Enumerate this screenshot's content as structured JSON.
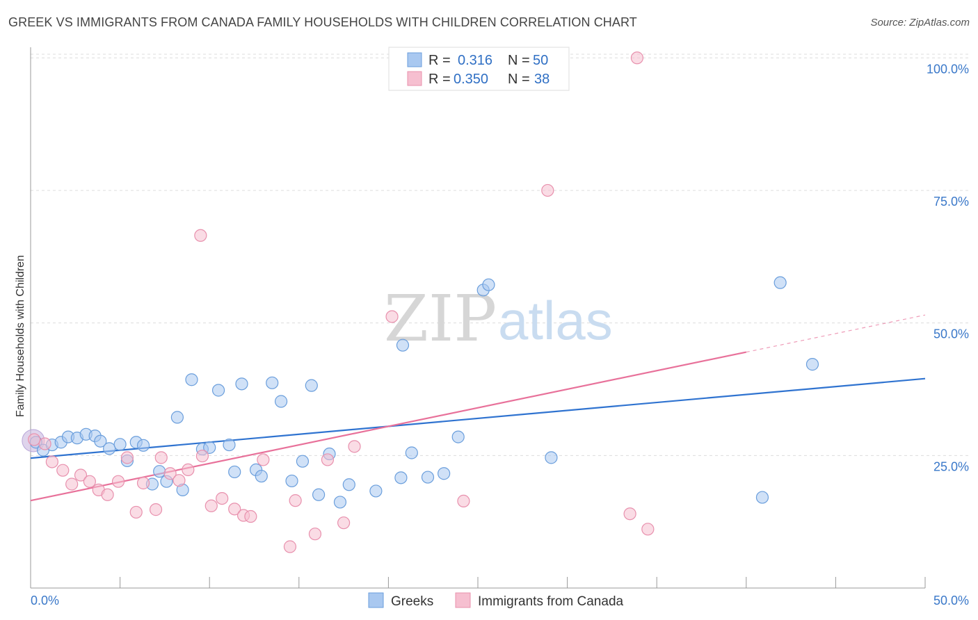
{
  "title": "GREEK VS IMMIGRANTS FROM CANADA FAMILY HOUSEHOLDS WITH CHILDREN CORRELATION CHART",
  "source": "Source: ZipAtlas.com",
  "watermark": {
    "zip": "ZIP",
    "atlas": "atlas"
  },
  "legend": {
    "r_label": "R =",
    "n_label": "N =",
    "rows": [
      {
        "r": "0.316",
        "n": "50",
        "color": "#a9c8f0",
        "stroke": "#6a9edc"
      },
      {
        "r": "0.350",
        "n": "38",
        "color": "#f6bfd0",
        "stroke": "#e890ad"
      }
    ]
  },
  "bottom_legend": [
    "Greeks",
    "Immigrants from Canada"
  ],
  "chart_data": {
    "type": "scatter",
    "title": "GREEK VS IMMIGRANTS FROM CANADA FAMILY HOUSEHOLDS WITH CHILDREN CORRELATION CHART",
    "xlabel": "",
    "ylabel": "Family Households with Children",
    "xlim": [
      0,
      50
    ],
    "ylim": [
      0,
      102
    ],
    "x_tick_labels": [
      "0.0%",
      "50.0%"
    ],
    "y_ticks": [
      {
        "value": 25,
        "label": "25.0%"
      },
      {
        "value": 50,
        "label": "50.0%"
      },
      {
        "value": 75,
        "label": "75.0%"
      },
      {
        "value": 100,
        "label": "100.0%"
      }
    ],
    "grid": true,
    "series": [
      {
        "name": "Greeks",
        "color": "#a9c8f0",
        "stroke": "#6a9edc",
        "trend": {
          "x0": 0,
          "y0": 24.5,
          "x1": 50,
          "y1": 39.5,
          "color": "#2f73d0"
        },
        "points": [
          [
            0.3,
            27.5
          ],
          [
            0.7,
            26.0
          ],
          [
            1.2,
            27.0
          ],
          [
            1.7,
            27.5
          ],
          [
            2.1,
            28.5
          ],
          [
            2.6,
            28.3
          ],
          [
            3.1,
            29.0
          ],
          [
            3.6,
            28.7
          ],
          [
            3.9,
            27.7
          ],
          [
            4.4,
            26.3
          ],
          [
            5.0,
            27.1
          ],
          [
            5.4,
            24.0
          ],
          [
            5.9,
            27.5
          ],
          [
            6.3,
            26.9
          ],
          [
            6.8,
            19.6
          ],
          [
            7.2,
            22.0
          ],
          [
            7.6,
            20.1
          ],
          [
            8.2,
            32.2
          ],
          [
            8.5,
            18.5
          ],
          [
            9.0,
            39.3
          ],
          [
            9.6,
            26.2
          ],
          [
            10.0,
            26.5
          ],
          [
            10.5,
            37.3
          ],
          [
            11.1,
            27.0
          ],
          [
            11.4,
            21.9
          ],
          [
            11.8,
            38.5
          ],
          [
            12.6,
            22.3
          ],
          [
            12.9,
            21.1
          ],
          [
            13.5,
            38.7
          ],
          [
            14.0,
            35.2
          ],
          [
            14.6,
            20.2
          ],
          [
            15.2,
            23.9
          ],
          [
            15.7,
            38.2
          ],
          [
            16.1,
            17.6
          ],
          [
            16.7,
            25.3
          ],
          [
            17.3,
            16.2
          ],
          [
            17.8,
            19.5
          ],
          [
            19.3,
            18.3
          ],
          [
            20.7,
            20.8
          ],
          [
            20.8,
            45.8
          ],
          [
            21.3,
            25.5
          ],
          [
            22.2,
            20.9
          ],
          [
            23.1,
            21.6
          ],
          [
            23.9,
            28.5
          ],
          [
            25.3,
            56.2
          ],
          [
            25.6,
            57.2
          ],
          [
            29.1,
            24.6
          ],
          [
            40.9,
            17.1
          ],
          [
            41.9,
            57.6
          ],
          [
            43.7,
            42.2
          ]
        ]
      },
      {
        "name": "Immigrants from Canada",
        "color": "#f6bfd0",
        "stroke": "#e890ad",
        "trend": {
          "x0": 0,
          "y0": 16.5,
          "x1": 40,
          "y1": 44.5,
          "x2": 50,
          "y2": 51.5,
          "color": "#e8719a"
        },
        "points": [
          [
            0.8,
            27.2
          ],
          [
            1.2,
            23.8
          ],
          [
            1.8,
            22.2
          ],
          [
            2.3,
            19.6
          ],
          [
            2.8,
            21.3
          ],
          [
            3.3,
            20.1
          ],
          [
            3.8,
            18.5
          ],
          [
            4.3,
            17.6
          ],
          [
            4.9,
            20.1
          ],
          [
            5.4,
            24.6
          ],
          [
            5.9,
            14.3
          ],
          [
            6.3,
            19.8
          ],
          [
            7.0,
            14.8
          ],
          [
            7.3,
            24.6
          ],
          [
            7.8,
            21.6
          ],
          [
            8.3,
            20.3
          ],
          [
            8.8,
            22.3
          ],
          [
            9.5,
            66.5
          ],
          [
            9.6,
            24.9
          ],
          [
            10.1,
            15.5
          ],
          [
            10.7,
            16.9
          ],
          [
            11.4,
            14.9
          ],
          [
            11.9,
            13.7
          ],
          [
            12.3,
            13.5
          ],
          [
            13.0,
            24.2
          ],
          [
            14.5,
            7.8
          ],
          [
            14.8,
            16.5
          ],
          [
            15.9,
            10.2
          ],
          [
            16.6,
            24.2
          ],
          [
            17.5,
            12.3
          ],
          [
            18.1,
            26.7
          ],
          [
            20.2,
            51.2
          ],
          [
            24.2,
            16.4
          ],
          [
            28.9,
            75.0
          ],
          [
            33.5,
            14.0
          ],
          [
            33.9,
            100.0
          ],
          [
            34.5,
            11.1
          ],
          [
            0.2,
            28.0
          ]
        ]
      }
    ]
  }
}
